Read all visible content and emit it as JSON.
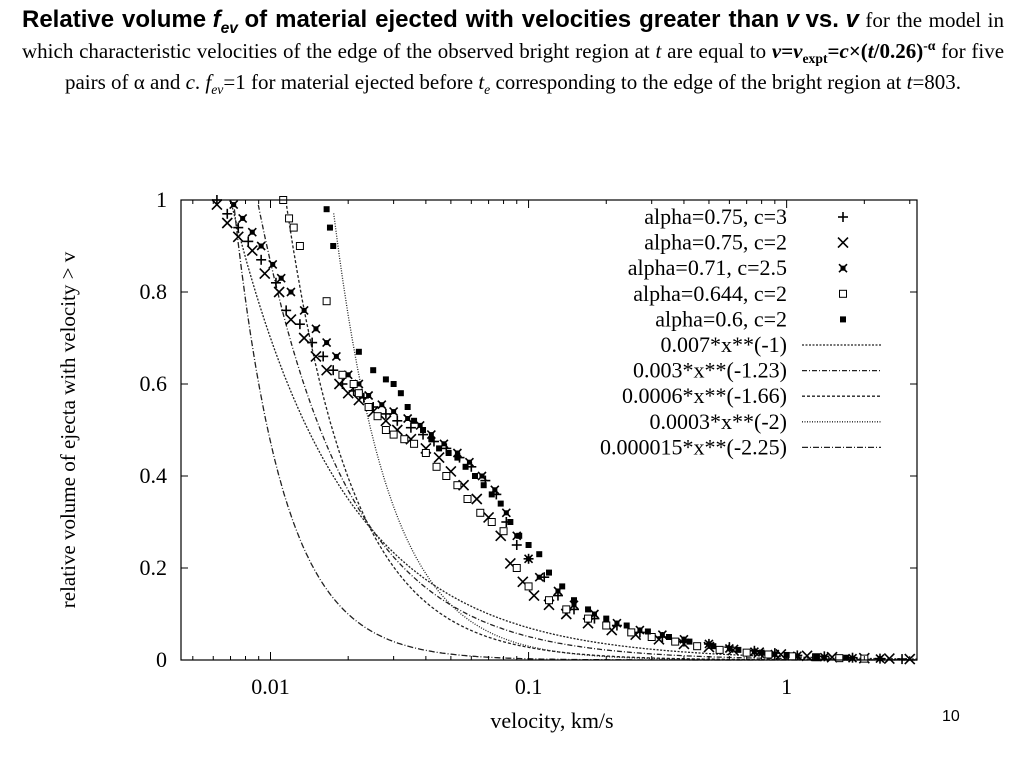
{
  "slide": {
    "title": {
      "bold_prefix": "Relative volume",
      "f_symbol": "f",
      "f_sub": "ev",
      "bold_mid": "of material ejected with velocities greater than",
      "v_symbol": "v",
      "bold_vs": "vs.",
      "p1": "for the model in which characteristic velocities of the edge of the observed bright region at",
      "t_symbol": "t",
      "p2": "are equal to",
      "formula_v": "v",
      "formula_eq": "=",
      "formula_vexpt": "v",
      "formula_vexpt_sub": "expt",
      "formula_eq2": "=",
      "formula_c": "c",
      "formula_times": "×(",
      "formula_t": "t",
      "formula_tail": "/0.26)",
      "formula_exp": "-α",
      "p3": "for five pairs of α and",
      "c_symbol": "c",
      "p4": ".",
      "f2_symbol": "f",
      "f2_sub": "ev",
      "p5": "=1 for material ejected before",
      "te_symbol": "t",
      "te_sub": "e",
      "p6": "corresponding to the edge of the bright region at",
      "t2_symbol": "t",
      "p7": "=803."
    },
    "page_number": "10"
  },
  "chart_data": {
    "type": "scatter",
    "xlabel": "velocity, km/s",
    "ylabel": "relative volume of ejecta with velocity > v",
    "x_scale": "log",
    "xlim": [
      0.0045,
      3.2
    ],
    "ylim": [
      0,
      1
    ],
    "x_ticks": [
      {
        "value": 0.01,
        "label": "0.01"
      },
      {
        "value": 0.1,
        "label": "0.1"
      },
      {
        "value": 1,
        "label": "1"
      }
    ],
    "y_ticks": [
      {
        "value": 0,
        "label": "0"
      },
      {
        "value": 0.2,
        "label": "0.2"
      },
      {
        "value": 0.4,
        "label": "0.4"
      },
      {
        "value": 0.6,
        "label": "0.6"
      },
      {
        "value": 0.8,
        "label": "0.8"
      },
      {
        "value": 1,
        "label": "1"
      }
    ],
    "grid": false,
    "legend_position": "top-right",
    "series": [
      {
        "name": "alpha=0.75, c=3",
        "marker": "plus",
        "points": [
          [
            0.0062,
            1.0
          ],
          [
            0.0068,
            0.97
          ],
          [
            0.0075,
            0.94
          ],
          [
            0.0082,
            0.91
          ],
          [
            0.0092,
            0.87
          ],
          [
            0.0105,
            0.82
          ],
          [
            0.0115,
            0.76
          ],
          [
            0.013,
            0.73
          ],
          [
            0.0145,
            0.69
          ],
          [
            0.016,
            0.66
          ],
          [
            0.0175,
            0.63
          ],
          [
            0.019,
            0.6
          ],
          [
            0.021,
            0.585
          ],
          [
            0.023,
            0.57
          ],
          [
            0.025,
            0.55
          ],
          [
            0.028,
            0.535
          ],
          [
            0.031,
            0.52
          ],
          [
            0.035,
            0.505
          ],
          [
            0.039,
            0.49
          ],
          [
            0.043,
            0.475
          ],
          [
            0.048,
            0.46
          ],
          [
            0.054,
            0.44
          ],
          [
            0.06,
            0.42
          ],
          [
            0.068,
            0.39
          ],
          [
            0.075,
            0.36
          ],
          [
            0.082,
            0.3
          ],
          [
            0.09,
            0.25
          ],
          [
            0.1,
            0.22
          ],
          [
            0.115,
            0.18
          ],
          [
            0.13,
            0.14
          ],
          [
            0.15,
            0.11
          ],
          [
            0.18,
            0.09
          ],
          [
            0.22,
            0.075
          ],
          [
            0.27,
            0.06
          ],
          [
            0.33,
            0.05
          ],
          [
            0.4,
            0.04
          ],
          [
            0.5,
            0.035
          ],
          [
            0.6,
            0.028
          ],
          [
            0.75,
            0.02
          ],
          [
            0.9,
            0.015
          ],
          [
            1.1,
            0.01
          ],
          [
            1.4,
            0.008
          ],
          [
            1.8,
            0.005
          ],
          [
            2.3,
            0.003
          ],
          [
            2.8,
            0.002
          ]
        ]
      },
      {
        "name": "alpha=0.75, c=2",
        "marker": "cross",
        "points": [
          [
            0.0062,
            0.99
          ],
          [
            0.0068,
            0.95
          ],
          [
            0.0075,
            0.92
          ],
          [
            0.0085,
            0.89
          ],
          [
            0.0095,
            0.84
          ],
          [
            0.0108,
            0.8
          ],
          [
            0.012,
            0.74
          ],
          [
            0.0135,
            0.7
          ],
          [
            0.015,
            0.66
          ],
          [
            0.0165,
            0.63
          ],
          [
            0.0185,
            0.6
          ],
          [
            0.02,
            0.58
          ],
          [
            0.022,
            0.565
          ],
          [
            0.025,
            0.54
          ],
          [
            0.028,
            0.52
          ],
          [
            0.031,
            0.5
          ],
          [
            0.035,
            0.48
          ],
          [
            0.04,
            0.46
          ],
          [
            0.045,
            0.44
          ],
          [
            0.05,
            0.41
          ],
          [
            0.056,
            0.38
          ],
          [
            0.063,
            0.35
          ],
          [
            0.07,
            0.31
          ],
          [
            0.078,
            0.27
          ],
          [
            0.085,
            0.21
          ],
          [
            0.095,
            0.17
          ],
          [
            0.105,
            0.14
          ],
          [
            0.12,
            0.12
          ],
          [
            0.14,
            0.1
          ],
          [
            0.17,
            0.08
          ],
          [
            0.21,
            0.065
          ],
          [
            0.26,
            0.055
          ],
          [
            0.32,
            0.045
          ],
          [
            0.4,
            0.035
          ],
          [
            0.5,
            0.028
          ],
          [
            0.62,
            0.022
          ],
          [
            0.78,
            0.016
          ],
          [
            0.95,
            0.012
          ],
          [
            1.2,
            0.009
          ],
          [
            1.5,
            0.006
          ],
          [
            2.0,
            0.004
          ],
          [
            2.5,
            0.003
          ],
          [
            3.0,
            0.002
          ]
        ]
      },
      {
        "name": "alpha=0.71, c=2.5",
        "marker": "star",
        "points": [
          [
            0.0072,
            0.99
          ],
          [
            0.0078,
            0.96
          ],
          [
            0.0085,
            0.93
          ],
          [
            0.0092,
            0.9
          ],
          [
            0.0102,
            0.86
          ],
          [
            0.011,
            0.83
          ],
          [
            0.012,
            0.8
          ],
          [
            0.0135,
            0.76
          ],
          [
            0.015,
            0.72
          ],
          [
            0.0165,
            0.69
          ],
          [
            0.018,
            0.66
          ],
          [
            0.02,
            0.62
          ],
          [
            0.022,
            0.6
          ],
          [
            0.024,
            0.575
          ],
          [
            0.027,
            0.555
          ],
          [
            0.03,
            0.54
          ],
          [
            0.034,
            0.525
          ],
          [
            0.038,
            0.51
          ],
          [
            0.042,
            0.49
          ],
          [
            0.047,
            0.47
          ],
          [
            0.053,
            0.45
          ],
          [
            0.059,
            0.43
          ],
          [
            0.066,
            0.4
          ],
          [
            0.074,
            0.37
          ],
          [
            0.082,
            0.32
          ],
          [
            0.09,
            0.27
          ],
          [
            0.1,
            0.22
          ],
          [
            0.11,
            0.18
          ],
          [
            0.13,
            0.15
          ],
          [
            0.15,
            0.12
          ],
          [
            0.18,
            0.1
          ],
          [
            0.22,
            0.08
          ],
          [
            0.27,
            0.065
          ],
          [
            0.33,
            0.055
          ],
          [
            0.4,
            0.045
          ],
          [
            0.5,
            0.035
          ],
          [
            0.6,
            0.025
          ],
          [
            0.75,
            0.018
          ],
          [
            0.9,
            0.013
          ],
          [
            1.1,
            0.009
          ],
          [
            1.4,
            0.006
          ],
          [
            1.8,
            0.004
          ],
          [
            2.3,
            0.003
          ]
        ]
      },
      {
        "name": "alpha=0.644, c=2",
        "marker": "square",
        "points": [
          [
            0.0112,
            1.0
          ],
          [
            0.0118,
            0.96
          ],
          [
            0.0123,
            0.94
          ],
          [
            0.013,
            0.9
          ],
          [
            0.0165,
            0.78
          ],
          [
            0.019,
            0.62
          ],
          [
            0.021,
            0.6
          ],
          [
            0.022,
            0.58
          ],
          [
            0.024,
            0.55
          ],
          [
            0.026,
            0.53
          ],
          [
            0.028,
            0.5
          ],
          [
            0.03,
            0.49
          ],
          [
            0.033,
            0.48
          ],
          [
            0.036,
            0.47
          ],
          [
            0.04,
            0.45
          ],
          [
            0.044,
            0.42
          ],
          [
            0.048,
            0.4
          ],
          [
            0.053,
            0.38
          ],
          [
            0.058,
            0.35
          ],
          [
            0.065,
            0.32
          ],
          [
            0.072,
            0.3
          ],
          [
            0.08,
            0.28
          ],
          [
            0.09,
            0.2
          ],
          [
            0.1,
            0.16
          ],
          [
            0.12,
            0.13
          ],
          [
            0.14,
            0.11
          ],
          [
            0.17,
            0.09
          ],
          [
            0.2,
            0.075
          ],
          [
            0.25,
            0.06
          ],
          [
            0.3,
            0.05
          ],
          [
            0.37,
            0.04
          ],
          [
            0.45,
            0.03
          ],
          [
            0.55,
            0.022
          ],
          [
            0.7,
            0.016
          ],
          [
            0.85,
            0.012
          ],
          [
            1.05,
            0.008
          ],
          [
            1.3,
            0.006
          ],
          [
            1.6,
            0.004
          ],
          [
            2.0,
            0.003
          ]
        ]
      },
      {
        "name": "alpha=0.6, c=2",
        "marker": "filled-square",
        "points": [
          [
            0.0165,
            0.98
          ],
          [
            0.017,
            0.94
          ],
          [
            0.0175,
            0.9
          ],
          [
            0.022,
            0.67
          ],
          [
            0.025,
            0.63
          ],
          [
            0.028,
            0.61
          ],
          [
            0.03,
            0.6
          ],
          [
            0.032,
            0.58
          ],
          [
            0.034,
            0.55
          ],
          [
            0.036,
            0.52
          ],
          [
            0.039,
            0.5
          ],
          [
            0.042,
            0.48
          ],
          [
            0.045,
            0.46
          ],
          [
            0.049,
            0.45
          ],
          [
            0.053,
            0.44
          ],
          [
            0.057,
            0.42
          ],
          [
            0.062,
            0.4
          ],
          [
            0.067,
            0.38
          ],
          [
            0.072,
            0.36
          ],
          [
            0.078,
            0.34
          ],
          [
            0.085,
            0.3
          ],
          [
            0.092,
            0.27
          ],
          [
            0.1,
            0.25
          ],
          [
            0.11,
            0.23
          ],
          [
            0.12,
            0.19
          ],
          [
            0.135,
            0.16
          ],
          [
            0.15,
            0.13
          ],
          [
            0.17,
            0.11
          ],
          [
            0.2,
            0.09
          ],
          [
            0.24,
            0.075
          ],
          [
            0.29,
            0.062
          ],
          [
            0.35,
            0.05
          ],
          [
            0.42,
            0.04
          ],
          [
            0.52,
            0.03
          ],
          [
            0.65,
            0.022
          ],
          [
            0.8,
            0.016
          ],
          [
            1.0,
            0.011
          ],
          [
            1.3,
            0.007
          ],
          [
            1.7,
            0.005
          ]
        ]
      }
    ],
    "curves": [
      {
        "name": "0.007*x**(-1)",
        "coef": 0.007,
        "exp": -1
      },
      {
        "name": "0.003*x**(-1.23)",
        "coef": 0.003,
        "exp": -1.23
      },
      {
        "name": "0.0006*x**(-1.66)",
        "coef": 0.0006,
        "exp": -1.66
      },
      {
        "name": "0.0003*x**(-2)",
        "coef": 0.0003,
        "exp": -2
      },
      {
        "name": "0.000015*x**(-2.25)",
        "coef": 1.5e-05,
        "exp": -2.25
      }
    ]
  }
}
